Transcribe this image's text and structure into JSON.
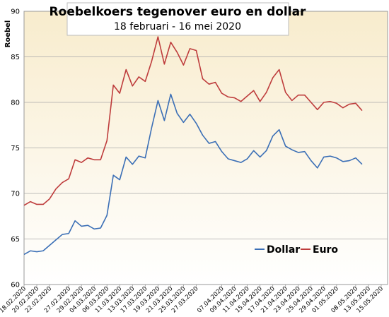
{
  "chart_data": {
    "type": "line",
    "title": "Roebelkoers tegenover euro en dollar",
    "subtitle": "18 februari - 16 mei 2020",
    "ylabel": "Roebel",
    "xlabel": "",
    "ylim": [
      60,
      90
    ],
    "yticks": [
      60,
      65,
      70,
      75,
      80,
      85,
      90
    ],
    "grid": true,
    "legend_position": "bottom-right",
    "background_colors": {
      "top": "#f8eccd",
      "bottom": "#ffffff"
    },
    "x": [
      "18.02.2020",
      "19.02.2020",
      "20.02.2020",
      "21.02.2020",
      "22.02.2020",
      "25.02.2020",
      "26.02.2020",
      "27.02.2020",
      "28.02.2020",
      "29.02.2020",
      "03.03.2020",
      "04.03.2020",
      "05.03.2020",
      "06.03.2020",
      "07.03.2020",
      "11.03.2020",
      "12.03.2020",
      "13.03.2020",
      "14.03.2020",
      "17.03.2020",
      "18.03.2020",
      "19.03.2020",
      "20.03.2020",
      "21.03.2020",
      "24.03.2020",
      "25.03.2020",
      "26.03.2020",
      "27.03.2020",
      "28.03.2020",
      "31.03.2020",
      "01.04.2020",
      "07.04.2020",
      "08.04.2020",
      "09.04.2020",
      "10.04.2020",
      "11.04.2020",
      "14.04.2020",
      "15.04.2020",
      "16.04.2020",
      "17.04.2020",
      "18.04.2020",
      "21.04.2020",
      "22.04.2020",
      "23.04.2020",
      "24.04.2020",
      "25.04.2020",
      "28.04.2020",
      "29.04.2020",
      "30.04.2020",
      "01.05.2020",
      "06.05.2020",
      "07.05.2020",
      "08.05.2020",
      "12.05.2020",
      "13.05.2020",
      "14.05.2020",
      "15.05.2020",
      "16.05.2020"
    ],
    "xtick_labels": [
      "18.02.2020",
      "20.02.2020",
      "22.02.2020",
      "27.02.2020",
      "29.02.2020",
      "04.03.2020",
      "06.03.2020",
      "11.03.2020",
      "13.03.2020",
      "17.03.2020",
      "19.03.2020",
      "21.03.2020",
      "25.03.2020",
      "27.03.2020",
      "07.04.2020",
      "09.04.2020",
      "11.04.2020",
      "15.04.2020",
      "17.04.2020",
      "21.04.2020",
      "23.04.2020",
      "25.04.2020",
      "29.04.2020",
      "01.05.2020",
      "08.05.2020",
      "13.05.2020",
      "15.05.2020"
    ],
    "series": [
      {
        "name": "Dollar",
        "color": "#3b6fb6",
        "values": [
          63.3,
          63.7,
          63.6,
          63.7,
          64.3,
          64.9,
          65.5,
          65.6,
          67.0,
          66.4,
          66.5,
          66.1,
          66.2,
          67.6,
          72.0,
          71.5,
          74.0,
          73.2,
          74.1,
          73.9,
          77.2,
          80.2,
          78.0,
          80.9,
          78.8,
          77.8,
          78.7,
          77.7,
          76.4,
          75.5,
          75.7,
          74.6,
          73.8,
          73.6,
          73.4,
          73.8,
          74.7,
          74.0,
          74.7,
          76.3,
          77.0,
          75.2,
          74.8,
          74.5,
          74.6,
          73.6,
          72.8,
          74.0,
          74.1,
          73.9,
          73.5,
          73.6,
          73.9,
          73.2,
          null,
          null,
          null,
          null
        ]
      },
      {
        "name": "Euro",
        "color": "#be3c3c",
        "values": [
          68.7,
          69.1,
          68.8,
          68.8,
          69.4,
          70.5,
          71.2,
          71.6,
          73.7,
          73.4,
          73.9,
          73.7,
          73.7,
          75.8,
          81.9,
          81.0,
          83.6,
          81.8,
          82.8,
          82.3,
          84.5,
          87.2,
          84.2,
          86.6,
          85.5,
          84.1,
          85.9,
          85.7,
          82.6,
          82.0,
          82.2,
          81.0,
          80.6,
          80.5,
          80.1,
          80.7,
          81.3,
          80.1,
          81.1,
          82.7,
          83.6,
          81.1,
          80.2,
          80.8,
          80.8,
          80.0,
          79.2,
          80.0,
          80.1,
          79.9,
          79.4,
          79.8,
          79.9,
          79.1,
          null,
          null,
          null,
          null
        ]
      }
    ]
  }
}
